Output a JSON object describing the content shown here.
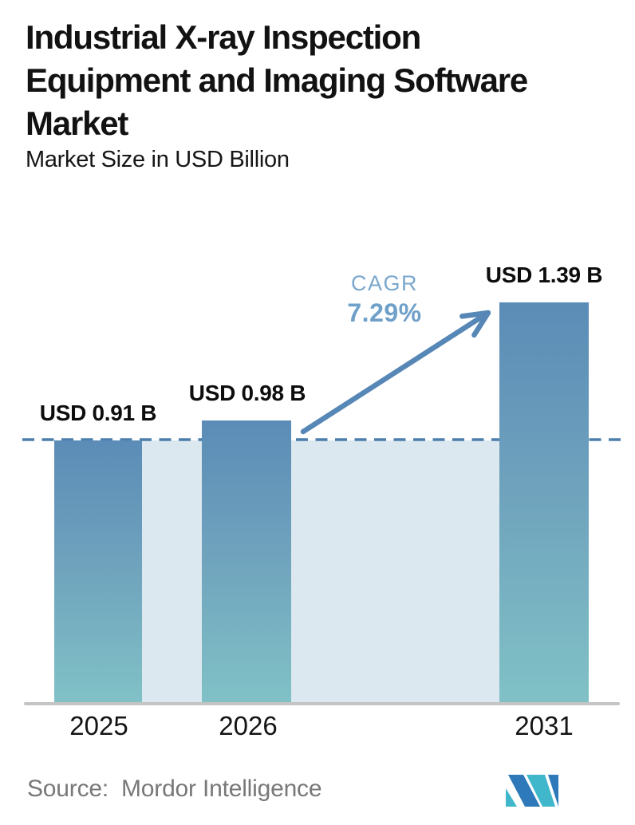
{
  "header": {
    "title": "Industrial X-ray Inspection\nEquipment and Imaging Software\nMarket",
    "subtitle": "Market Size in USD Billion"
  },
  "chart_data": {
    "type": "bar",
    "title": "Industrial X-ray Inspection Equipment and Imaging Software Market",
    "subtitle": "Market Size in USD Billion",
    "unit": "USD Billion",
    "categories": [
      "2025",
      "2026",
      "2031"
    ],
    "values": [
      0.91,
      0.98,
      1.39
    ],
    "value_labels": [
      "USD 0.91 B",
      "USD 0.98 B",
      "USD 1.39 B"
    ],
    "cagr": {
      "label": "CAGR",
      "value": "7.29%"
    },
    "baseline": {
      "value": 0.91,
      "style": "dashed"
    },
    "ylim": [
      0,
      1.5
    ],
    "grid": false,
    "legend": "none",
    "colors": {
      "bar_gradient_top": "#5B8CB7",
      "bar_gradient_bottom": "#80C1C6",
      "baseline_region_fill": "#DCE8EF",
      "dashed_line": "#4C7EAD",
      "arrow": "#5687B6",
      "cagr_text": "#6FA0C9",
      "axis_line": "#C4C4C4",
      "title_text": "#121212",
      "source_text": "#787878"
    }
  },
  "footer": {
    "source_label": "Source:",
    "source_name": "Mordor Intelligence",
    "logo": "mordor-intelligence-logo"
  }
}
